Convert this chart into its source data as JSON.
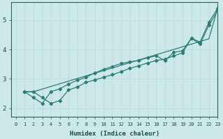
{
  "xlabel": "Humidex (Indice chaleur)",
  "bg_color": "#cce8e8",
  "grid_color": "#b0d8d8",
  "line_color": "#2d7d78",
  "xlim": [
    -0.5,
    23
  ],
  "ylim": [
    1.7,
    5.6
  ],
  "xticks": [
    0,
    1,
    2,
    3,
    4,
    5,
    6,
    7,
    8,
    9,
    10,
    11,
    12,
    13,
    14,
    15,
    16,
    17,
    18,
    19,
    20,
    21,
    22,
    23
  ],
  "yticks": [
    2,
    3,
    4,
    5
  ],
  "smooth_line": [
    2.56,
    2.56,
    2.65,
    2.74,
    2.83,
    2.92,
    3.01,
    3.1,
    3.19,
    3.28,
    3.37,
    3.46,
    3.55,
    3.64,
    3.73,
    3.82,
    3.91,
    4.0,
    4.09,
    4.18,
    4.27,
    4.36,
    5.4
  ],
  "marker_line1": [
    2.56,
    2.36,
    2.16,
    2.56,
    2.66,
    2.82,
    2.95,
    3.05,
    3.2,
    3.32,
    3.42,
    3.52,
    3.58,
    3.62,
    3.72,
    3.78,
    3.62,
    3.9,
    3.95,
    4.38,
    4.18,
    4.82,
    5.32
  ],
  "marker_line2": [
    2.56,
    2.56,
    2.36,
    2.16,
    2.26,
    2.62,
    2.72,
    2.88,
    2.96,
    3.05,
    3.14,
    3.24,
    3.36,
    3.44,
    3.54,
    3.62,
    3.67,
    3.78,
    3.88,
    4.38,
    4.25,
    4.92,
    5.4
  ]
}
